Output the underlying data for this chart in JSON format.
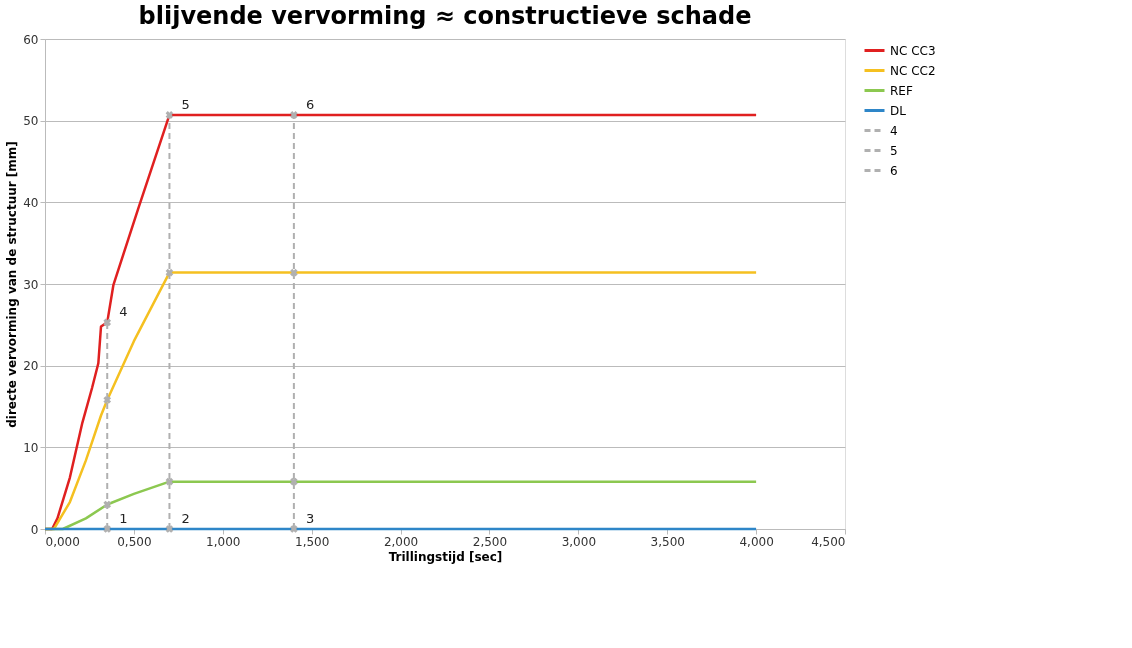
{
  "chart_data": {
    "type": "line",
    "title": "blijvende vervorming ≈ constructieve schade",
    "xlabel": "Trillingstijd [sec]",
    "ylabel": "directe vervorming van de structuur [mm]",
    "xlim": [
      0,
      4.5
    ],
    "xticks": [
      {
        "value": 0,
        "label": "0,000"
      },
      {
        "value": 0.5,
        "label": "0,500"
      },
      {
        "value": 1,
        "label": "1,000"
      },
      {
        "value": 1.5,
        "label": "1,500"
      },
      {
        "value": 2,
        "label": "2,000"
      },
      {
        "value": 2.5,
        "label": "2,500"
      },
      {
        "value": 3,
        "label": "3,000"
      },
      {
        "value": 3.5,
        "label": "3,500"
      },
      {
        "value": 4,
        "label": "4,000"
      },
      {
        "value": 4.5,
        "label": "4,500"
      }
    ],
    "ylim": [
      0,
      60
    ],
    "yticks": [
      0,
      10,
      20,
      30,
      40,
      50,
      60
    ],
    "grid": "y",
    "legend": "right",
    "marker": "none",
    "line_style": "solid",
    "series": [
      {
        "name": "NC CC3",
        "color": "#e02020",
        "x": [
          0,
          0.04,
          0.07,
          0.14,
          0.21,
          0.265,
          0.3,
          0.315,
          0.35,
          0.385,
          0.524,
          0.7,
          1.4,
          4.0
        ],
        "values": [
          0,
          0,
          1.3,
          6.3,
          13,
          17.3,
          20.3,
          24.8,
          25.3,
          29.9,
          39.2,
          50.7,
          50.7,
          50.7
        ]
      },
      {
        "name": "NC CC2",
        "color": "#f5c020",
        "x": [
          0,
          0.05,
          0.14,
          0.23,
          0.315,
          0.35,
          0.5,
          0.7,
          1.4,
          4.0
        ],
        "values": [
          0,
          0,
          3.3,
          8.4,
          13.9,
          15.8,
          23,
          31.4,
          31.4,
          31.4
        ]
      },
      {
        "name": "REF",
        "color": "#8cc850",
        "x": [
          0,
          0.1,
          0.23,
          0.35,
          0.5,
          0.7,
          1.4,
          4.0
        ],
        "values": [
          0,
          0,
          1.3,
          3.0,
          4.3,
          5.8,
          5.8,
          5.8
        ]
      },
      {
        "name": "DL",
        "color": "#2e86c8",
        "x": [
          0,
          0.35,
          0.7,
          1.4,
          4.0
        ],
        "values": [
          0,
          0,
          0,
          0,
          0
        ]
      },
      {
        "name": "4",
        "color": "#b0b0b0",
        "line_style": "dashed",
        "marker": "cross",
        "x": [
          0.35,
          0.35,
          0.35,
          0.35
        ],
        "values": [
          0,
          3.0,
          15.8,
          25.3
        ]
      },
      {
        "name": "5",
        "color": "#b0b0b0",
        "line_style": "dashed",
        "marker": "cross",
        "x": [
          0.7,
          0.7,
          0.7,
          0.7
        ],
        "values": [
          0,
          5.8,
          31.4,
          50.7
        ]
      },
      {
        "name": "6",
        "color": "#b0b0b0",
        "line_style": "dashed",
        "marker": "cross",
        "x": [
          1.4,
          1.4,
          1.4,
          1.4
        ],
        "values": [
          0,
          5.8,
          31.4,
          50.7
        ]
      }
    ],
    "annotations": [
      {
        "text": "1",
        "x": 0.35,
        "y": 0
      },
      {
        "text": "2",
        "x": 0.7,
        "y": 0
      },
      {
        "text": "3",
        "x": 1.4,
        "y": 0
      },
      {
        "text": "4",
        "x": 0.35,
        "y": 25.3
      },
      {
        "text": "5",
        "x": 0.7,
        "y": 50.7
      },
      {
        "text": "6",
        "x": 1.4,
        "y": 50.7
      }
    ]
  }
}
